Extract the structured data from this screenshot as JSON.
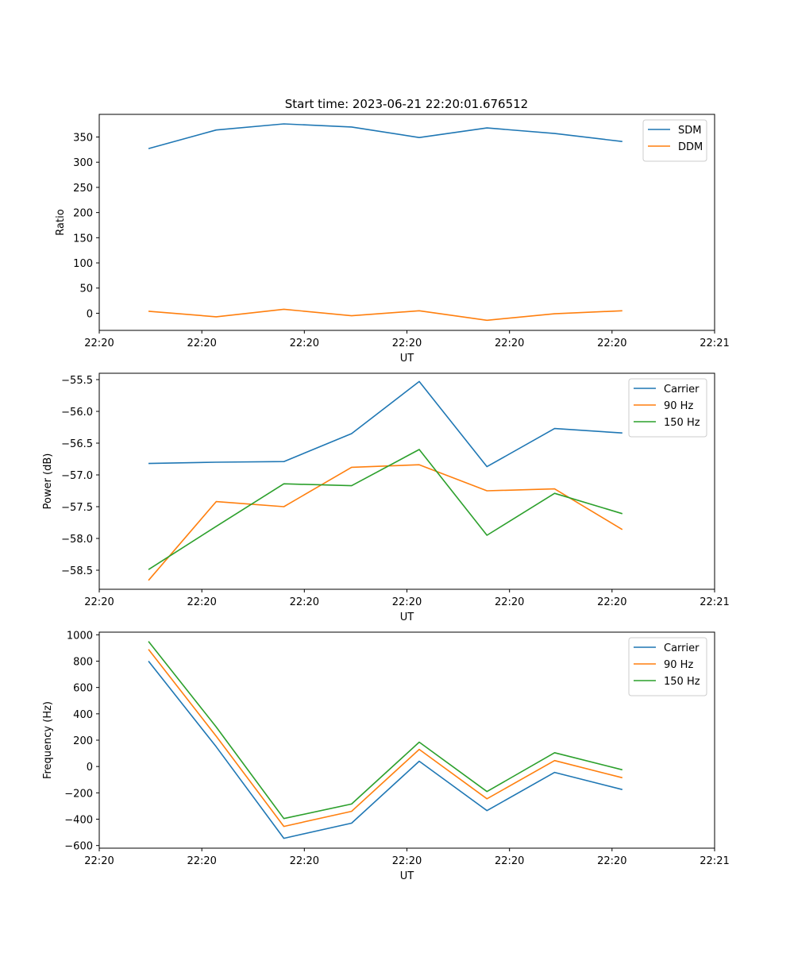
{
  "title": "Start time: 2023-06-21 22:20:01.676512",
  "colors": {
    "blue": "#1f77b4",
    "orange": "#ff7f0e",
    "green": "#2ca02c"
  },
  "chart_data": [
    {
      "type": "line",
      "xlabel": "UT",
      "ylabel": "Ratio",
      "legend_position": "top-right",
      "xlim": [
        0,
        10
      ],
      "ylim": [
        -34,
        395
      ],
      "yticks": [
        0,
        50,
        100,
        150,
        200,
        250,
        300,
        350
      ],
      "xticks": [
        0,
        1.667,
        3.333,
        5,
        6.667,
        8.333,
        10
      ],
      "xtick_labels": [
        "22:20",
        "22:20",
        "22:20",
        "22:20",
        "22:20",
        "22:20",
        "22:21"
      ],
      "x": [
        0.8,
        1.9,
        3.0,
        4.1,
        5.2,
        6.3,
        7.4,
        8.5
      ],
      "series": [
        {
          "name": "SDM",
          "color": "blue",
          "values": [
            327,
            364,
            376,
            370,
            349,
            368,
            357,
            341
          ]
        },
        {
          "name": "DDM",
          "color": "orange",
          "values": [
            4,
            -7,
            8,
            -5,
            5,
            -14,
            -1,
            5
          ]
        }
      ]
    },
    {
      "type": "line",
      "xlabel": "UT",
      "ylabel": "Power (dB)",
      "legend_position": "top-right",
      "xlim": [
        0,
        10
      ],
      "ylim": [
        -58.8,
        -55.4
      ],
      "yticks": [
        -58.5,
        -58.0,
        -57.5,
        -57.0,
        -56.5,
        -56.0,
        -55.5
      ],
      "ytick_labels": [
        "−58.5",
        "−58.0",
        "−57.5",
        "−57.0",
        "−56.5",
        "−56.0",
        "−55.5"
      ],
      "xticks": [
        0,
        1.667,
        3.333,
        5,
        6.667,
        8.333,
        10
      ],
      "xtick_labels": [
        "22:20",
        "22:20",
        "22:20",
        "22:20",
        "22:20",
        "22:20",
        "22:21"
      ],
      "x": [
        0.8,
        1.9,
        3.0,
        4.1,
        5.2,
        6.3,
        7.4,
        8.5
      ],
      "series": [
        {
          "name": "Carrier",
          "color": "blue",
          "values": [
            -56.82,
            -56.8,
            -56.79,
            -56.35,
            -55.53,
            -56.87,
            -56.27,
            -56.34
          ]
        },
        {
          "name": "90 Hz",
          "color": "orange",
          "values": [
            -58.66,
            -57.42,
            -57.5,
            -56.88,
            -56.84,
            -57.25,
            -57.22,
            -57.86
          ]
        },
        {
          "name": "150 Hz",
          "color": "green",
          "values": [
            -58.49,
            -57.81,
            -57.14,
            -57.17,
            -56.6,
            -57.95,
            -57.29,
            -57.61
          ]
        }
      ]
    },
    {
      "type": "line",
      "xlabel": "UT",
      "ylabel": "Frequency (Hz)",
      "legend_position": "top-right",
      "xlim": [
        0,
        10
      ],
      "ylim": [
        -620,
        1020
      ],
      "yticks": [
        -600,
        -400,
        -200,
        0,
        200,
        400,
        600,
        800,
        1000
      ],
      "ytick_labels": [
        "−600",
        "−400",
        "−200",
        "0",
        "200",
        "400",
        "600",
        "800",
        "1000"
      ],
      "xticks": [
        0,
        1.667,
        3.333,
        5,
        6.667,
        8.333,
        10
      ],
      "xtick_labels": [
        "22:20",
        "22:20",
        "22:20",
        "22:20",
        "22:20",
        "22:20",
        "22:21"
      ],
      "x": [
        0.8,
        1.9,
        3.0,
        4.1,
        5.2,
        6.3,
        7.4,
        8.5
      ],
      "series": [
        {
          "name": "Carrier",
          "color": "blue",
          "values": [
            800,
            150,
            -545,
            -430,
            40,
            -335,
            -45,
            -175
          ]
        },
        {
          "name": "90 Hz",
          "color": "orange",
          "values": [
            890,
            230,
            -455,
            -340,
            130,
            -245,
            45,
            -85
          ]
        },
        {
          "name": "150 Hz",
          "color": "green",
          "values": [
            950,
            300,
            -395,
            -285,
            185,
            -190,
            105,
            -25
          ]
        }
      ]
    }
  ]
}
